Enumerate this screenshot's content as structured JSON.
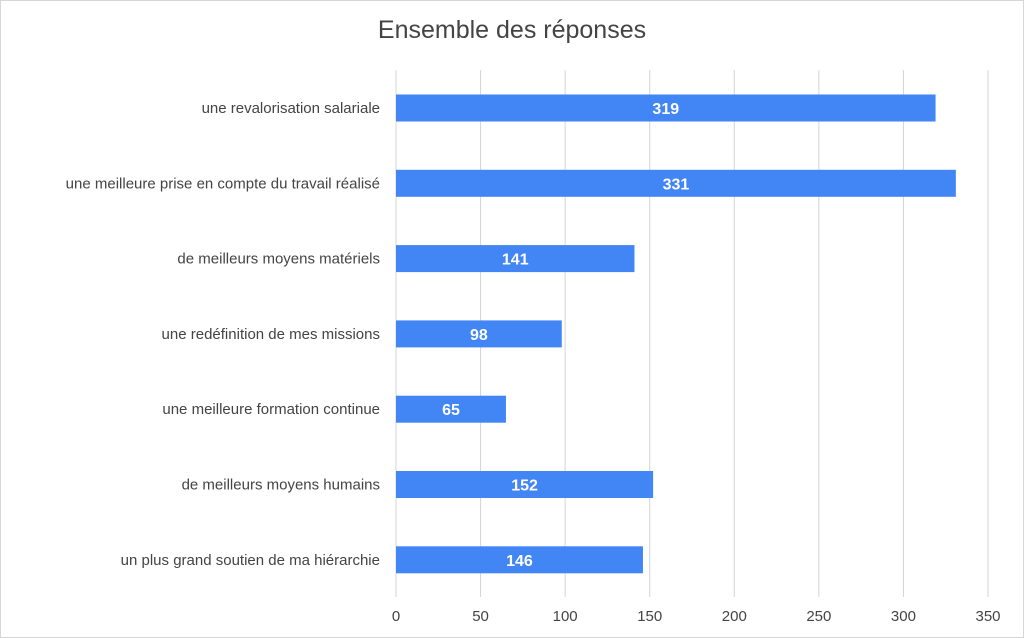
{
  "chart_data": {
    "type": "bar",
    "orientation": "horizontal",
    "title": "Ensemble des réponses",
    "categories": [
      "une revalorisation salariale",
      "une meilleure prise en compte du travail réalisé",
      "de meilleurs moyens matériels",
      "une redéfinition de mes missions",
      "une meilleure formation continue",
      "de meilleurs moyens humains",
      "un plus grand soutien de ma hiérarchie"
    ],
    "values": [
      319,
      331,
      141,
      98,
      65,
      152,
      146
    ],
    "xlim": [
      0,
      350
    ],
    "xticks": [
      0,
      50,
      100,
      150,
      200,
      250,
      300,
      350
    ],
    "grid": "vertical",
    "legend": "none",
    "data_labels": "inside-center",
    "bar_color": "#4285f4",
    "label_color": "#ffffff",
    "grid_color": "#d4d4d4",
    "text_color": "#444444"
  }
}
